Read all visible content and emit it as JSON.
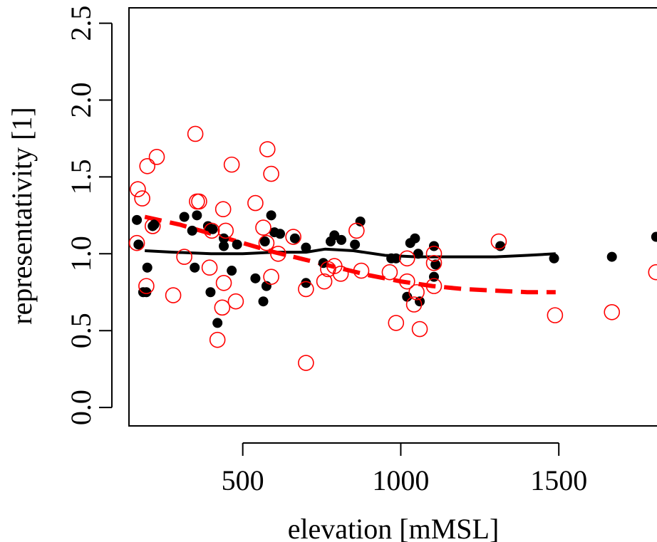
{
  "chart_data": {
    "type": "scatter",
    "title": "",
    "xlabel": "elevation  [mMSL]",
    "ylabel": "representativity  [1]",
    "xlim": [
      140,
      1840
    ],
    "ylim": [
      -0.12,
      2.6
    ],
    "xticks": [
      500,
      1000,
      1500
    ],
    "xtick_labels": [
      "500",
      "1000",
      "1500"
    ],
    "yticks": [
      0.0,
      0.5,
      1.0,
      1.5,
      2.0,
      2.5
    ],
    "ytick_labels": [
      "0.0",
      "0.5",
      "1.0",
      "1.5",
      "2.0",
      "2.5"
    ],
    "grid": false,
    "legend": "none",
    "colors": {
      "black_series": "#000000",
      "red_series": "#ff0000"
    },
    "series": [
      {
        "marker": "filled-circle",
        "color": "#000000",
        "points": [
          [
            165,
            1.22
          ],
          [
            170,
            1.06
          ],
          [
            185,
            0.75
          ],
          [
            195,
            0.75
          ],
          [
            198,
            0.91
          ],
          [
            215,
            1.18
          ],
          [
            220,
            1.19
          ],
          [
            315,
            1.24
          ],
          [
            340,
            1.15
          ],
          [
            348,
            0.91
          ],
          [
            355,
            1.25
          ],
          [
            390,
            1.18
          ],
          [
            398,
            0.75
          ],
          [
            405,
            1.16
          ],
          [
            420,
            0.55
          ],
          [
            440,
            1.1
          ],
          [
            440,
            1.05
          ],
          [
            465,
            0.89
          ],
          [
            482,
            1.06
          ],
          [
            540,
            0.84
          ],
          [
            565,
            0.69
          ],
          [
            570,
            1.08
          ],
          [
            575,
            0.79
          ],
          [
            590,
            1.25
          ],
          [
            600,
            1.14
          ],
          [
            618,
            1.13
          ],
          [
            665,
            1.1
          ],
          [
            700,
            1.04
          ],
          [
            700,
            0.81
          ],
          [
            755,
            0.94
          ],
          [
            778,
            1.08
          ],
          [
            790,
            1.12
          ],
          [
            812,
            1.09
          ],
          [
            855,
            1.06
          ],
          [
            872,
            1.21
          ],
          [
            970,
            0.97
          ],
          [
            985,
            0.97
          ],
          [
            1020,
            0.72
          ],
          [
            1030,
            1.07
          ],
          [
            1045,
            1.1
          ],
          [
            1055,
            1.0
          ],
          [
            1060,
            0.69
          ],
          [
            1105,
            1.05
          ],
          [
            1105,
            0.85
          ],
          [
            1110,
            0.93
          ],
          [
            1315,
            1.05
          ],
          [
            1485,
            0.97
          ],
          [
            1668,
            0.98
          ],
          [
            1808,
            1.11
          ]
        ]
      },
      {
        "marker": "open-circle",
        "color": "#ff0000",
        "points": [
          [
            168,
            1.42
          ],
          [
            165,
            1.07
          ],
          [
            182,
            1.36
          ],
          [
            195,
            0.79
          ],
          [
            198,
            1.57
          ],
          [
            215,
            1.18
          ],
          [
            228,
            1.63
          ],
          [
            280,
            0.73
          ],
          [
            315,
            0.98
          ],
          [
            350,
            1.78
          ],
          [
            355,
            1.34
          ],
          [
            362,
            1.34
          ],
          [
            395,
            0.91
          ],
          [
            402,
            1.15
          ],
          [
            420,
            0.44
          ],
          [
            435,
            0.65
          ],
          [
            438,
            1.29
          ],
          [
            440,
            0.81
          ],
          [
            446,
            1.15
          ],
          [
            465,
            1.58
          ],
          [
            478,
            0.69
          ],
          [
            540,
            1.33
          ],
          [
            565,
            1.17
          ],
          [
            575,
            1.07
          ],
          [
            578,
            1.68
          ],
          [
            590,
            1.52
          ],
          [
            590,
            0.85
          ],
          [
            612,
            1.0
          ],
          [
            660,
            1.11
          ],
          [
            700,
            0.77
          ],
          [
            700,
            0.29
          ],
          [
            758,
            0.82
          ],
          [
            770,
            0.9
          ],
          [
            790,
            0.92
          ],
          [
            810,
            0.87
          ],
          [
            860,
            1.15
          ],
          [
            875,
            0.89
          ],
          [
            965,
            0.88
          ],
          [
            985,
            0.55
          ],
          [
            1020,
            0.97
          ],
          [
            1020,
            0.82
          ],
          [
            1042,
            0.67
          ],
          [
            1050,
            0.75
          ],
          [
            1060,
            0.51
          ],
          [
            1105,
            1.0
          ],
          [
            1105,
            0.94
          ],
          [
            1105,
            0.79
          ],
          [
            1310,
            1.08
          ],
          [
            1488,
            0.6
          ],
          [
            1668,
            0.62
          ],
          [
            1808,
            0.88
          ]
        ]
      },
      {
        "marker": "solid-line",
        "color": "#000000",
        "points": [
          [
            190,
            1.02
          ],
          [
            280,
            1.01
          ],
          [
            400,
            1.0
          ],
          [
            500,
            1.0
          ],
          [
            600,
            1.01
          ],
          [
            700,
            1.01
          ],
          [
            760,
            1.03
          ],
          [
            850,
            1.02
          ],
          [
            950,
            0.99
          ],
          [
            1050,
            0.98
          ],
          [
            1150,
            0.98
          ],
          [
            1300,
            0.98
          ],
          [
            1400,
            0.99
          ],
          [
            1490,
            1.0
          ]
        ]
      },
      {
        "marker": "dashed-line",
        "color": "#ff0000",
        "points": [
          [
            190,
            1.24
          ],
          [
            300,
            1.19
          ],
          [
            400,
            1.13
          ],
          [
            500,
            1.07
          ],
          [
            600,
            1.01
          ],
          [
            700,
            0.96
          ],
          [
            800,
            0.91
          ],
          [
            900,
            0.86
          ],
          [
            1000,
            0.82
          ],
          [
            1100,
            0.79
          ],
          [
            1200,
            0.77
          ],
          [
            1300,
            0.76
          ],
          [
            1400,
            0.75
          ],
          [
            1490,
            0.75
          ]
        ]
      }
    ]
  }
}
